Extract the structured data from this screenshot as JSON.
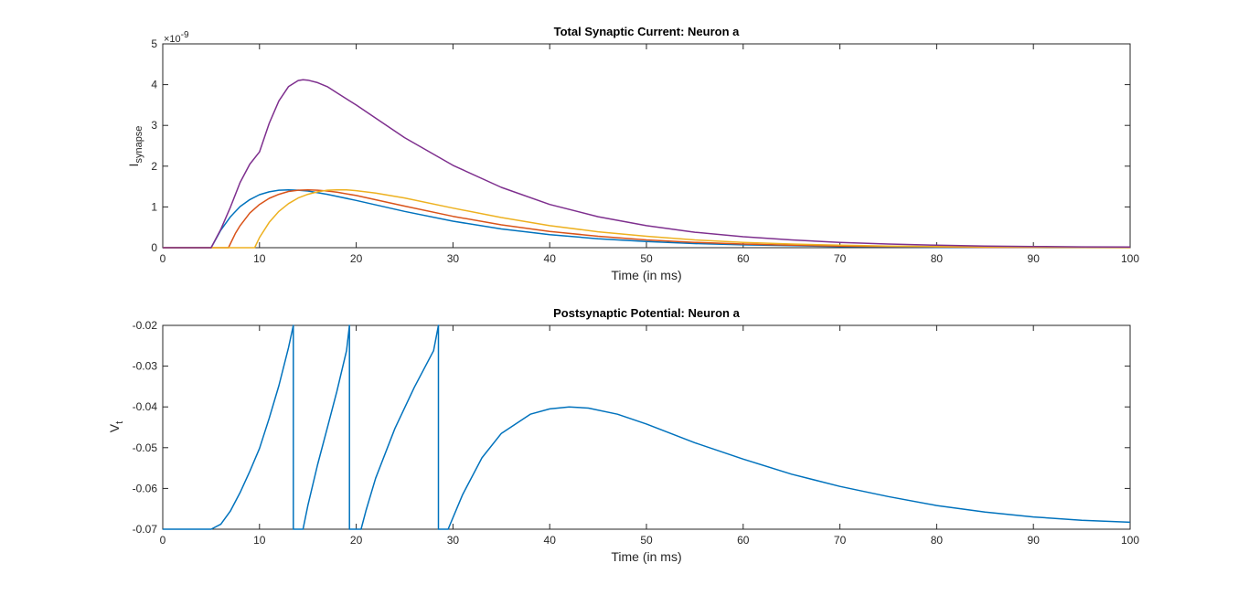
{
  "chart_data": [
    {
      "type": "line",
      "title": "Total Synaptic Current: Neuron a",
      "xlabel": "Time (in ms)",
      "ylabel_main": "I",
      "ylabel_sub": "synapse",
      "exponent_label": "×10",
      "exponent_power": "-9",
      "xlim": [
        0,
        100
      ],
      "ylim": [
        0,
        5
      ],
      "x_ticks": [
        "0",
        "10",
        "20",
        "30",
        "40",
        "50",
        "60",
        "70",
        "80",
        "90",
        "100"
      ],
      "y_ticks": [
        "0",
        "1",
        "2",
        "3",
        "4",
        "5"
      ],
      "grid": false,
      "colors": [
        "#0072BD",
        "#D95319",
        "#EDB120",
        "#7E2F8E"
      ],
      "series": [
        {
          "color": "#0072BD",
          "x": [
            0,
            5,
            6,
            7,
            8,
            9,
            10,
            11,
            12,
            13,
            14,
            15,
            17,
            20,
            25,
            30,
            35,
            40,
            45,
            50,
            55,
            60,
            65,
            70,
            75,
            80,
            85,
            90,
            95,
            100
          ],
          "y": [
            0,
            0,
            0.43,
            0.76,
            1.01,
            1.18,
            1.3,
            1.37,
            1.41,
            1.42,
            1.41,
            1.39,
            1.31,
            1.16,
            0.89,
            0.65,
            0.46,
            0.32,
            0.22,
            0.15,
            0.1,
            0.07,
            0.05,
            0.03,
            0.02,
            0.01,
            0.01,
            0.005,
            0.003,
            0.002
          ]
        },
        {
          "color": "#D95319",
          "x": [
            0,
            6.8,
            7.5,
            8,
            9,
            10,
            11,
            12,
            13,
            14,
            15,
            16,
            17,
            18,
            20,
            25,
            30,
            35,
            40,
            45,
            50,
            55,
            60,
            65,
            70,
            75,
            80,
            85,
            90,
            95,
            100
          ],
          "y": [
            0,
            0,
            0.35,
            0.54,
            0.85,
            1.06,
            1.21,
            1.31,
            1.38,
            1.41,
            1.42,
            1.41,
            1.39,
            1.36,
            1.28,
            1.02,
            0.77,
            0.56,
            0.4,
            0.28,
            0.19,
            0.13,
            0.09,
            0.06,
            0.04,
            0.03,
            0.02,
            0.01,
            0.008,
            0.005,
            0.003
          ]
        },
        {
          "color": "#EDB120",
          "x": [
            0,
            9.5,
            10,
            11,
            12,
            13,
            14,
            15,
            16,
            17,
            18,
            19,
            20,
            22,
            25,
            30,
            35,
            40,
            45,
            50,
            55,
            60,
            65,
            70,
            75,
            80,
            85,
            90,
            95,
            100
          ],
          "y": [
            0,
            0,
            0.25,
            0.62,
            0.89,
            1.08,
            1.22,
            1.31,
            1.37,
            1.41,
            1.42,
            1.42,
            1.4,
            1.34,
            1.22,
            0.97,
            0.74,
            0.54,
            0.39,
            0.28,
            0.19,
            0.13,
            0.09,
            0.06,
            0.04,
            0.03,
            0.02,
            0.013,
            0.009,
            0.006
          ]
        },
        {
          "color": "#7E2F8E",
          "x": [
            0,
            5,
            6,
            7,
            8,
            9,
            10,
            11,
            12,
            13,
            14,
            14.5,
            15,
            16,
            17,
            18,
            20,
            25,
            30,
            35,
            40,
            45,
            50,
            55,
            60,
            65,
            70,
            75,
            80,
            85,
            90,
            95,
            100
          ],
          "y": [
            0,
            0,
            0.45,
            1.0,
            1.6,
            2.05,
            2.35,
            3.05,
            3.6,
            3.95,
            4.1,
            4.12,
            4.11,
            4.05,
            3.95,
            3.8,
            3.5,
            2.7,
            2.02,
            1.48,
            1.06,
            0.76,
            0.54,
            0.38,
            0.27,
            0.19,
            0.13,
            0.09,
            0.06,
            0.04,
            0.03,
            0.02,
            0.015
          ]
        }
      ]
    },
    {
      "type": "line",
      "title": "Postsynaptic Potential: Neuron a",
      "xlabel": "Time (in ms)",
      "ylabel_main": "V",
      "ylabel_sub": "t",
      "xlim": [
        0,
        100
      ],
      "ylim": [
        -0.07,
        -0.02
      ],
      "x_ticks": [
        "0",
        "10",
        "20",
        "30",
        "40",
        "50",
        "60",
        "70",
        "80",
        "90",
        "100"
      ],
      "y_ticks": [
        "-0.07",
        "-0.06",
        "-0.05",
        "-0.04",
        "-0.03",
        "-0.02"
      ],
      "grid": false,
      "series": [
        {
          "color": "#0072BD",
          "x": [
            0,
            5,
            6,
            7,
            8,
            9,
            10,
            11,
            12,
            13,
            13.5,
            13.5,
            14.5,
            15,
            16,
            17,
            18,
            19,
            19.3,
            19.3,
            20.5,
            21,
            22,
            24,
            26,
            28,
            28.5,
            28.5,
            29.5,
            31,
            33,
            35,
            38,
            40,
            42,
            44,
            47,
            50,
            55,
            60,
            65,
            70,
            75,
            80,
            85,
            90,
            95,
            100
          ],
          "y": [
            -0.07,
            -0.07,
            -0.0688,
            -0.0655,
            -0.061,
            -0.0558,
            -0.0502,
            -0.0428,
            -0.0348,
            -0.0255,
            -0.02,
            -0.07,
            -0.07,
            -0.0642,
            -0.0542,
            -0.0452,
            -0.0362,
            -0.0262,
            -0.02,
            -0.07,
            -0.07,
            -0.0655,
            -0.0575,
            -0.0453,
            -0.0352,
            -0.0262,
            -0.02,
            -0.07,
            -0.07,
            -0.0615,
            -0.0525,
            -0.0465,
            -0.0418,
            -0.0405,
            -0.04,
            -0.0403,
            -0.0418,
            -0.0442,
            -0.0488,
            -0.0528,
            -0.0565,
            -0.0595,
            -0.062,
            -0.0642,
            -0.0658,
            -0.067,
            -0.0678,
            -0.0683
          ]
        }
      ]
    }
  ]
}
